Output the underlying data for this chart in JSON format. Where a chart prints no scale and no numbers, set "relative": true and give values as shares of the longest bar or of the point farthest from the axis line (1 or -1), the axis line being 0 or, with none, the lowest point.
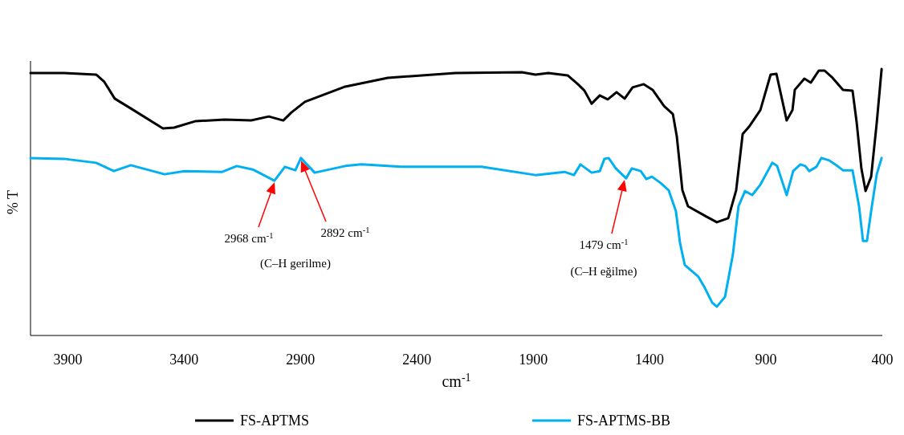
{
  "chart_data": {
    "type": "line",
    "relative": true,
    "xlabel": "cm$^{-1}$",
    "ylabel": "% T",
    "xlim": [
      4060,
      400
    ],
    "xticks": [
      3900,
      3400,
      2900,
      2400,
      1900,
      1400,
      900,
      400
    ],
    "grid": false,
    "legend": "bottom",
    "marker": "none",
    "line_style": "solid",
    "series": [
      {
        "name": "FS-APTMS",
        "color": "#000000",
        "x": [
          4060,
          3916,
          3778,
          3743,
          3698,
          3629,
          3491,
          3443,
          3353,
          3226,
          3112,
          3036,
          2974,
          2939,
          2881,
          2708,
          2525,
          2235,
          1949,
          1890,
          1835,
          1752,
          1708,
          1680,
          1649,
          1614,
          1580,
          1542,
          1507,
          1473,
          1425,
          1387,
          1338,
          1300,
          1283,
          1259,
          1235,
          1156,
          1111,
          1062,
          1028,
          1000,
          973,
          924,
          880,
          855,
          811,
          786,
          776,
          735,
          707,
          673,
          648,
          614,
          569,
          528,
          510,
          490,
          472,
          448,
          424,
          403
        ],
        "values": [
          0.985,
          0.985,
          0.979,
          0.952,
          0.889,
          0.852,
          0.777,
          0.78,
          0.804,
          0.81,
          0.807,
          0.822,
          0.807,
          0.837,
          0.877,
          0.934,
          0.967,
          0.985,
          0.988,
          0.979,
          0.985,
          0.976,
          0.943,
          0.919,
          0.87,
          0.901,
          0.886,
          0.913,
          0.889,
          0.931,
          0.943,
          0.922,
          0.861,
          0.831,
          0.747,
          0.545,
          0.485,
          0.446,
          0.425,
          0.44,
          0.545,
          0.756,
          0.783,
          0.846,
          0.979,
          0.982,
          0.807,
          0.846,
          0.922,
          0.964,
          0.949,
          0.994,
          0.994,
          0.967,
          0.922,
          0.919,
          0.798,
          0.627,
          0.542,
          0.596,
          0.798,
          1.0
        ]
      },
      {
        "name": "FS-APTMS-BB",
        "color": "#00b0f0",
        "x": [
          4060,
          3916,
          3778,
          3702,
          3629,
          3484,
          3398,
          3236,
          3174,
          3105,
          3012,
          2967,
          2922,
          2898,
          2839,
          2708,
          2639,
          2467,
          2122,
          1890,
          1766,
          1725,
          1697,
          1649,
          1614,
          1594,
          1576,
          1545,
          1501,
          1476,
          1438,
          1414,
          1390,
          1352,
          1318,
          1287,
          1269,
          1249,
          1190,
          1166,
          1131,
          1111,
          1076,
          1042,
          1018,
          990,
          959,
          924,
          873,
          852,
          811,
          783,
          752,
          731,
          714,
          683,
          662,
          628,
          593,
          569,
          528,
          500,
          483,
          466,
          448,
          424,
          403
        ],
        "values": [
          0.666,
          0.663,
          0.648,
          0.617,
          0.639,
          0.605,
          0.617,
          0.614,
          0.636,
          0.623,
          0.581,
          0.633,
          0.62,
          0.666,
          0.611,
          0.636,
          0.642,
          0.633,
          0.633,
          0.602,
          0.614,
          0.602,
          0.642,
          0.611,
          0.617,
          0.663,
          0.666,
          0.627,
          0.59,
          0.627,
          0.617,
          0.587,
          0.596,
          0.572,
          0.545,
          0.467,
          0.346,
          0.265,
          0.22,
          0.184,
          0.123,
          0.108,
          0.145,
          0.304,
          0.485,
          0.542,
          0.527,
          0.566,
          0.648,
          0.636,
          0.527,
          0.617,
          0.642,
          0.636,
          0.617,
          0.633,
          0.666,
          0.657,
          0.636,
          0.62,
          0.62,
          0.485,
          0.355,
          0.355,
          0.467,
          0.605,
          0.666
        ]
      }
    ],
    "annotations": [
      "2968 cm$^{-1}$",
      "2892 cm$^{-1}$",
      "(C–H gerilme)",
      "1479 cm$^{-1}$",
      "(C–H eğilme)"
    ]
  }
}
